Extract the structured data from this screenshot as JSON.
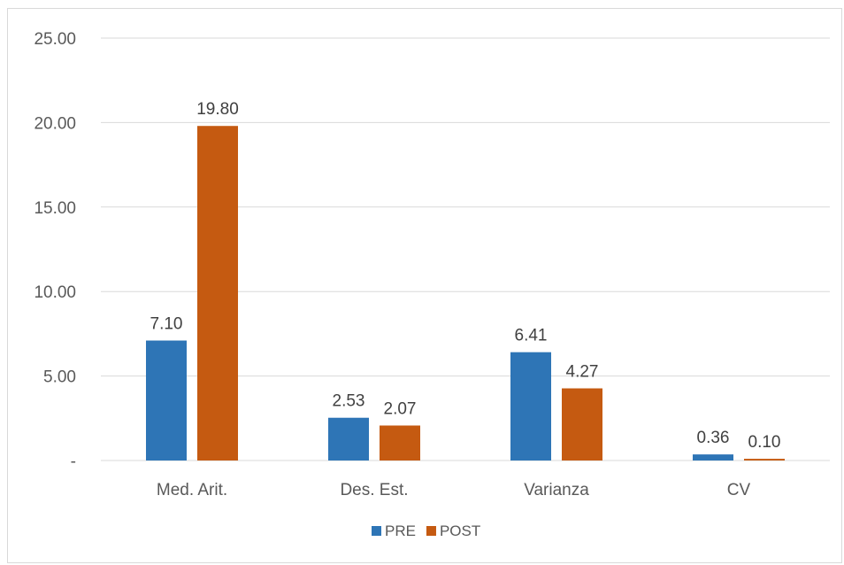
{
  "chart_data": {
    "type": "bar",
    "categories": [
      "Med. Arit.",
      "Des. Est.",
      "Varianza",
      "CV"
    ],
    "series": [
      {
        "name": "PRE",
        "color": "#2e75b6",
        "values": [
          7.1,
          2.53,
          6.41,
          0.36
        ],
        "labels": [
          "7.10",
          "2.53",
          "6.41",
          "0.36"
        ]
      },
      {
        "name": "POST",
        "color": "#c55a11",
        "values": [
          19.8,
          2.07,
          4.27,
          0.1
        ],
        "labels": [
          "19.80",
          "2.07",
          "4.27",
          "0.10"
        ]
      }
    ],
    "yticks": [
      {
        "value": 0,
        "label": "-"
      },
      {
        "value": 5,
        "label": "5.00"
      },
      {
        "value": 10,
        "label": "10.00"
      },
      {
        "value": 15,
        "label": "15.00"
      },
      {
        "value": 20,
        "label": "20.00"
      },
      {
        "value": 25,
        "label": "25.00"
      }
    ],
    "ylim": [
      0,
      25
    ],
    "grid": true,
    "legend_position": "bottom",
    "title": "",
    "xlabel": "",
    "ylabel": ""
  }
}
